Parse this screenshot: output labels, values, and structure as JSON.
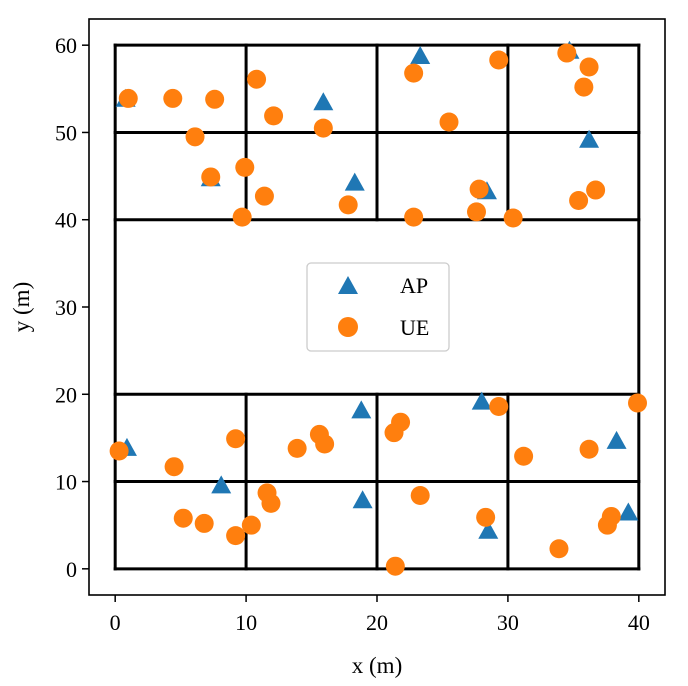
{
  "chart_data": {
    "type": "scatter",
    "title": "",
    "xlabel": "x (m)",
    "ylabel": "y (m)",
    "xlim": [
      -2,
      42
    ],
    "ylim": [
      -3,
      63
    ],
    "xticks": [
      0,
      10,
      20,
      30,
      40
    ],
    "yticks": [
      0,
      10,
      20,
      30,
      40,
      50,
      60
    ],
    "grid": false,
    "legend_position": "center",
    "wall_color": "#000000",
    "walls": [
      [
        [
          0,
          60
        ],
        [
          40,
          60
        ]
      ],
      [
        [
          0,
          50
        ],
        [
          40,
          50
        ]
      ],
      [
        [
          0,
          40
        ],
        [
          40,
          40
        ]
      ],
      [
        [
          0,
          20
        ],
        [
          40,
          20
        ]
      ],
      [
        [
          0,
          10
        ],
        [
          40,
          10
        ]
      ],
      [
        [
          0,
          0
        ],
        [
          40,
          0
        ]
      ],
      [
        [
          0,
          0
        ],
        [
          0,
          60
        ]
      ],
      [
        [
          40,
          0
        ],
        [
          40,
          60
        ]
      ],
      [
        [
          10,
          40
        ],
        [
          10,
          60
        ]
      ],
      [
        [
          20,
          40
        ],
        [
          20,
          60
        ]
      ],
      [
        [
          30,
          40
        ],
        [
          30,
          60
        ]
      ],
      [
        [
          10,
          0
        ],
        [
          10,
          20
        ]
      ],
      [
        [
          20,
          0
        ],
        [
          20,
          20
        ]
      ],
      [
        [
          30,
          0
        ],
        [
          30,
          20
        ]
      ]
    ],
    "series": [
      {
        "name": "AP",
        "marker": "triangle",
        "color": "#1f77b4",
        "points": [
          [
            0.8,
            53.8
          ],
          [
            15.9,
            53.4
          ],
          [
            23.3,
            58.7
          ],
          [
            34.7,
            59.3
          ],
          [
            36.2,
            49.1
          ],
          [
            7.3,
            44.7
          ],
          [
            18.3,
            44.2
          ],
          [
            28.4,
            43.2
          ],
          [
            0.9,
            13.8
          ],
          [
            8.1,
            9.5
          ],
          [
            18.8,
            18.1
          ],
          [
            28.0,
            19.1
          ],
          [
            38.3,
            14.6
          ],
          [
            18.9,
            7.8
          ],
          [
            28.5,
            4.3
          ],
          [
            39.2,
            6.4
          ]
        ]
      },
      {
        "name": "UE",
        "marker": "circle",
        "color": "#ff7f0e",
        "points": [
          [
            1.0,
            53.9
          ],
          [
            4.4,
            53.9
          ],
          [
            7.6,
            53.8
          ],
          [
            10.8,
            56.1
          ],
          [
            12.1,
            51.9
          ],
          [
            6.1,
            49.5
          ],
          [
            7.3,
            44.9
          ],
          [
            9.9,
            46.0
          ],
          [
            11.4,
            42.7
          ],
          [
            9.7,
            40.3
          ],
          [
            15.9,
            50.5
          ],
          [
            17.8,
            41.7
          ],
          [
            22.8,
            56.8
          ],
          [
            29.3,
            58.3
          ],
          [
            25.5,
            51.2
          ],
          [
            22.8,
            40.3
          ],
          [
            27.8,
            43.5
          ],
          [
            27.6,
            40.9
          ],
          [
            30.4,
            40.2
          ],
          [
            34.5,
            59.1
          ],
          [
            36.2,
            57.5
          ],
          [
            35.8,
            55.2
          ],
          [
            36.7,
            43.4
          ],
          [
            35.4,
            42.2
          ],
          [
            0.3,
            13.5
          ],
          [
            4.5,
            11.7
          ],
          [
            9.2,
            14.9
          ],
          [
            5.2,
            5.8
          ],
          [
            6.8,
            5.2
          ],
          [
            9.2,
            3.8
          ],
          [
            10.4,
            5.0
          ],
          [
            11.6,
            8.7
          ],
          [
            11.9,
            7.5
          ],
          [
            13.9,
            13.8
          ],
          [
            15.6,
            15.4
          ],
          [
            16.0,
            14.3
          ],
          [
            21.3,
            15.6
          ],
          [
            21.8,
            16.8
          ],
          [
            23.3,
            8.4
          ],
          [
            21.4,
            0.3
          ],
          [
            29.3,
            18.6
          ],
          [
            31.2,
            12.9
          ],
          [
            28.3,
            5.9
          ],
          [
            33.9,
            2.3
          ],
          [
            36.2,
            13.7
          ],
          [
            37.6,
            5.0
          ],
          [
            37.9,
            6.0
          ],
          [
            39.9,
            19.0
          ]
        ]
      }
    ]
  }
}
